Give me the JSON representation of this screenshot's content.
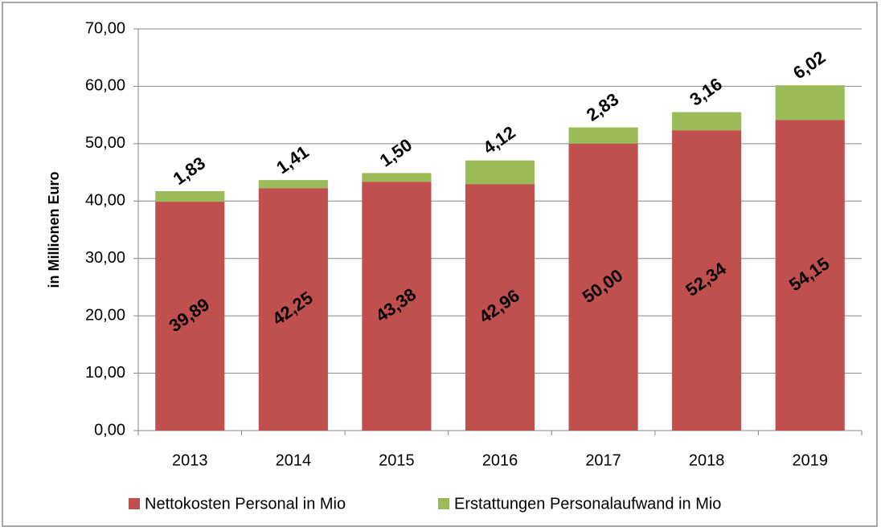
{
  "chart_data": {
    "type": "bar",
    "stacked": true,
    "y_axis_label": "in Millionen Euro",
    "categories": [
      "2013",
      "2014",
      "2015",
      "2016",
      "2017",
      "2018",
      "2019"
    ],
    "series": [
      {
        "name": "Nettokosten Personal in Mio",
        "color": "#c0504d",
        "values": [
          39.89,
          42.25,
          43.38,
          42.96,
          50.0,
          52.34,
          54.15
        ],
        "value_labels": [
          "39,89",
          "42,25",
          "43,38",
          "42,96",
          "50,00",
          "52,34",
          "54,15"
        ]
      },
      {
        "name": "Erstattungen Personalaufwand in Mio",
        "color": "#9bbb59",
        "values": [
          1.83,
          1.41,
          1.5,
          4.12,
          2.83,
          3.16,
          6.02
        ],
        "value_labels": [
          "1,83",
          "1,41",
          "1,50",
          "4,12",
          "2,83",
          "3,16",
          "6,02"
        ]
      }
    ],
    "ylim": [
      0,
      70
    ],
    "yticks": [
      {
        "value": 0,
        "label": "0,00"
      },
      {
        "value": 10,
        "label": "10,00"
      },
      {
        "value": 20,
        "label": "20,00"
      },
      {
        "value": 30,
        "label": "30,00"
      },
      {
        "value": 40,
        "label": "40,00"
      },
      {
        "value": 50,
        "label": "50,00"
      },
      {
        "value": 60,
        "label": "60,00"
      },
      {
        "value": 70,
        "label": "70,00"
      }
    ],
    "grid": true,
    "legend": "bottom"
  }
}
